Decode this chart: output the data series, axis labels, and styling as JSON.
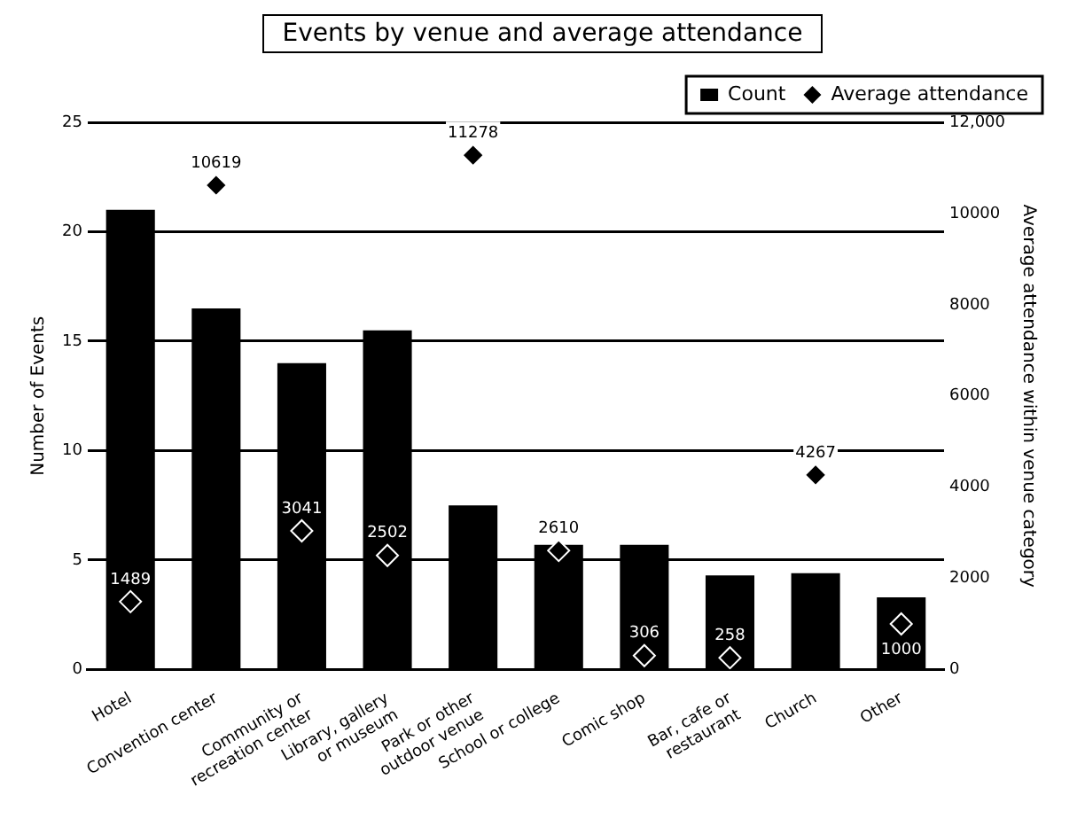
{
  "chart_data": {
    "type": "bar",
    "title": "Events by venue and average attendance",
    "xlabel": null,
    "ylabel": "Number of Events",
    "y2label": "Average attendance within venue category",
    "categories": [
      "Hotel",
      "Convention center",
      "Community or recreation center",
      "Library, gallery or museum",
      "Park or other outdoor venue",
      "School or college",
      "Comic shop",
      "Bar, cafe or restaurant",
      "Church",
      "Other"
    ],
    "series": [
      {
        "name": "Count",
        "color": "#000000",
        "values": [
          21,
          16.5,
          14,
          15.5,
          7.5,
          5.7,
          5.7,
          4.3,
          4.4,
          3.3
        ]
      },
      {
        "name": "Average attendance",
        "type": "scatter",
        "axis": "y2",
        "color": "#000000",
        "values": [
          1489,
          10619,
          3041,
          2502,
          11278,
          2610,
          306,
          258,
          4267,
          1000
        ],
        "value_labels": [
          "1489",
          "10619",
          "3041",
          "2502",
          "11278",
          "2610",
          "306",
          "258",
          "4267",
          "1000"
        ]
      }
    ],
    "ylim": [
      0,
      25
    ],
    "yticks": [
      0,
      5,
      10,
      15,
      20,
      25
    ],
    "y2lim": [
      0,
      12000
    ],
    "y2ticks": [
      0,
      2000,
      4000,
      6000,
      8000,
      10000,
      {
        "value": 12000,
        "label": "12,000"
      }
    ],
    "grid": "y",
    "legend": "top right",
    "marker": "diamond"
  }
}
